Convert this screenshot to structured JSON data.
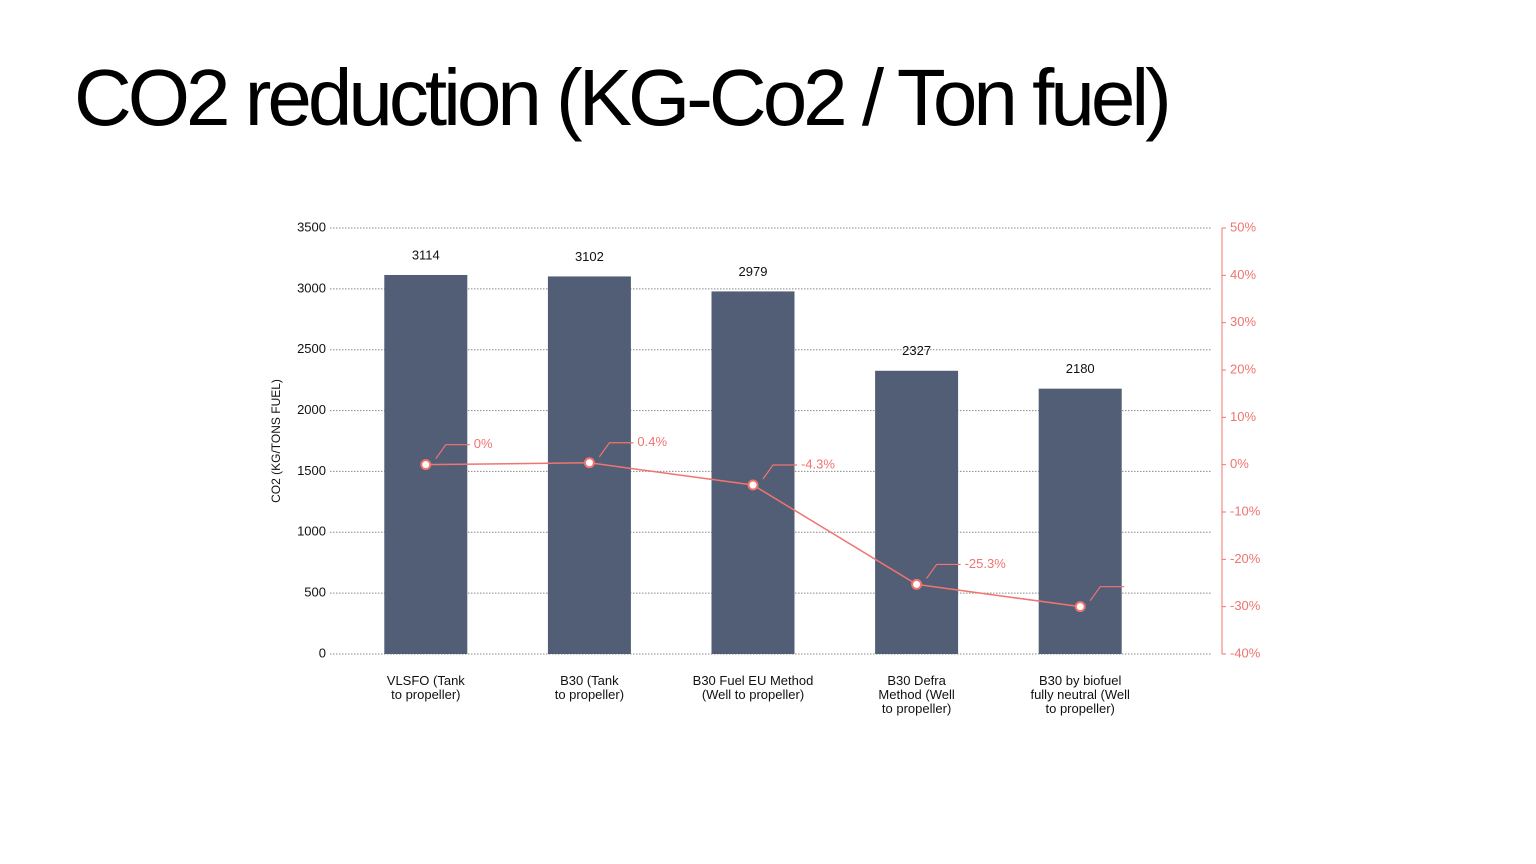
{
  "chart_data": {
    "type": "bar",
    "title": "CO2 reduction (KG-Co2 / Ton fuel)",
    "y_label": "CO2 (KG/TONS FUEL)",
    "categories": [
      "VLSFO (Tank\nto propeller)",
      "B30 (Tank\nto propeller)",
      "B30 Fuel EU Method\n(Well to propeller)",
      "B30 Defra\nMethod (Well\nto propeller)",
      "B30 by biofuel\nfully neutral (Well\nto propeller)"
    ],
    "series": [
      {
        "type": "bar",
        "color": "#525e75",
        "values": [
          3114,
          3102,
          2979,
          2327,
          2180
        ]
      },
      {
        "type": "line",
        "axis": "y2",
        "color": "#f07470",
        "values": [
          0,
          0.4,
          -4.3,
          -25.3,
          -30
        ],
        "value_labels": [
          "0%",
          "0.4%",
          "-4.3%",
          "-25.3%",
          null
        ]
      }
    ],
    "ylim": [
      0,
      3500
    ],
    "yticks": [
      0,
      500,
      1000,
      1500,
      2000,
      2500,
      3000,
      3500
    ],
    "y2lim": [
      -40,
      50
    ],
    "y2ticks": [
      {
        "value": -40,
        "label": "-40%"
      },
      {
        "value": -30,
        "label": "-30%"
      },
      {
        "value": -20,
        "label": "-20%"
      },
      {
        "value": -10,
        "label": "-10%"
      },
      {
        "value": 0,
        "label": "0%"
      },
      {
        "value": 10,
        "label": "10%"
      },
      {
        "value": 20,
        "label": "20%"
      },
      {
        "value": 30,
        "label": "30%"
      },
      {
        "value": 40,
        "label": "40%"
      },
      {
        "value": 50,
        "label": "50%"
      }
    ],
    "grid": true
  }
}
